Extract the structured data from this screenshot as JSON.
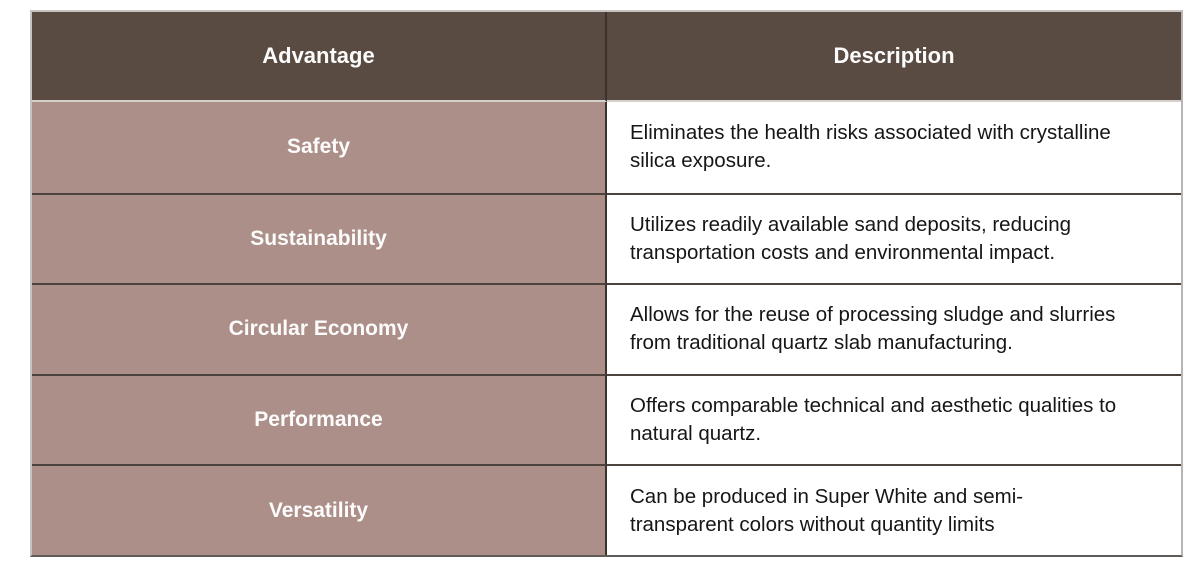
{
  "table": {
    "headers": {
      "advantage": "Advantage",
      "description": "Description"
    },
    "rows": [
      {
        "advantage": "Safety",
        "description": "Eliminates the health risks associated with crystalline silica exposure.",
        "description_lines": [
          "Eliminates the health risks associated with crystalline",
          "silica exposure."
        ]
      },
      {
        "advantage": "Sustainability",
        "description": "Utilizes readily available sand deposits, reducing transportation costs and environmental impact.",
        "description_lines": [
          "Utilizes readily available sand deposits, reducing",
          "transportation costs and environmental impact."
        ]
      },
      {
        "advantage": "Circular Economy",
        "description": "Allows for the reuse of processing sludge and slurries from traditional quartz slab manufacturing.",
        "description_lines": [
          "Allows for the reuse of processing sludge and slurries",
          "from traditional quartz slab manufacturing."
        ]
      },
      {
        "advantage": "Performance",
        "description": "Offers comparable technical and aesthetic qualities to natural quartz.",
        "description_lines": [
          "Offers comparable technical and aesthetic qualities to",
          "natural quartz."
        ]
      },
      {
        "advantage": "Versatility",
        "description": "Can be produced in Super White and semi-transparent colors without quantity limits",
        "description_lines": [
          "Can be produced in Super White and semi-",
          "transparent colors without quantity limits"
        ]
      }
    ],
    "colors": {
      "header_background": "#594a42",
      "advantage_background": "#ac8f88",
      "header_text": "#fdfcfc",
      "advantage_text": "#fdfcfc",
      "description_text": "#161616",
      "grid_line_dark": "#4c433e",
      "column_divider": "#3c322d",
      "outer_border_light": "#c8c3c1"
    }
  }
}
